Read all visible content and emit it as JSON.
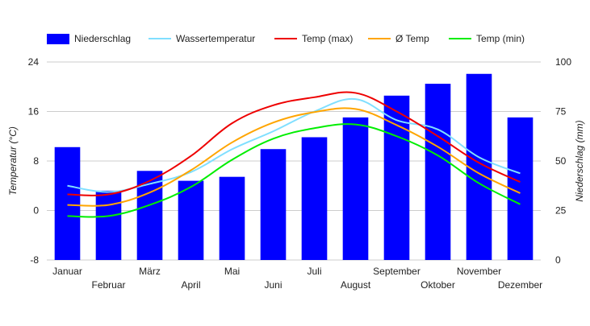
{
  "chart_data": {
    "type": "bar+line",
    "categories": [
      "Januar",
      "Februar",
      "März",
      "April",
      "Mai",
      "Juni",
      "Juli",
      "August",
      "September",
      "Oktober",
      "November",
      "Dezember"
    ],
    "left_axis": {
      "label": "Temperatur (°C)",
      "ylim": [
        -8,
        24
      ],
      "ticks": [
        "24",
        "16",
        "8",
        "0",
        "-8"
      ]
    },
    "right_axis": {
      "label": "Niederschlag (mm)",
      "ylim": [
        0,
        100
      ],
      "ticks": [
        "100",
        "75",
        "50",
        "25",
        "0"
      ]
    },
    "legend_placement": "top-left",
    "grid": "horizontal",
    "bars": {
      "name": "Niederschlag",
      "color": "#0000ff",
      "axis": "right",
      "values": [
        57,
        35,
        45,
        40,
        42,
        56,
        62,
        72,
        83,
        89,
        94,
        72
      ]
    },
    "series": [
      {
        "name": "Wassertemperatur",
        "color": "#80dfff",
        "axis": "left",
        "values": [
          4.0,
          3.0,
          4.3,
          6.2,
          9.9,
          12.8,
          16.0,
          18.0,
          14.6,
          13.1,
          8.6,
          6.0
        ]
      },
      {
        "name": "Temp (max)",
        "color": "#ee0000",
        "axis": "left",
        "values": [
          2.6,
          2.6,
          4.8,
          8.8,
          14.1,
          17.0,
          18.3,
          19.0,
          16.0,
          12.0,
          7.7,
          4.6
        ]
      },
      {
        "name": "Ø Temp",
        "color": "#ffa500",
        "axis": "left",
        "values": [
          0.9,
          0.9,
          2.9,
          6.5,
          11.0,
          14.2,
          15.9,
          16.4,
          13.8,
          10.3,
          6.0,
          2.8
        ]
      },
      {
        "name": "Temp (min)",
        "color": "#00ee00",
        "axis": "left",
        "values": [
          -0.9,
          -0.9,
          0.9,
          3.8,
          8.2,
          11.6,
          13.3,
          13.9,
          12.0,
          8.9,
          4.4,
          1.0
        ]
      }
    ]
  }
}
